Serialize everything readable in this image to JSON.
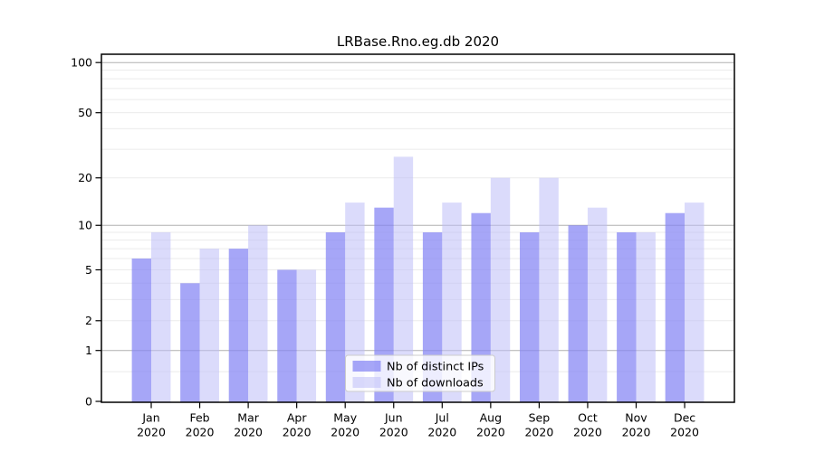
{
  "chart_data": {
    "type": "bar",
    "title": "LRBase.Rno.eg.db 2020",
    "categories": [
      "Jan",
      "Feb",
      "Mar",
      "Apr",
      "May",
      "Jun",
      "Jul",
      "Aug",
      "Sep",
      "Oct",
      "Nov",
      "Dec"
    ],
    "x_sublabel": "2020",
    "series": [
      {
        "name": "Nb of distinct IPs",
        "color": "rgba(132,132,244,0.72)",
        "values": [
          6,
          4,
          7,
          5,
          9,
          13,
          9,
          12,
          9,
          10,
          9,
          12
        ]
      },
      {
        "name": "Nb of downloads",
        "color": "rgba(190,190,248,0.55)",
        "values": [
          9,
          7,
          10,
          5,
          14,
          27,
          14,
          20,
          20,
          13,
          9,
          14
        ]
      }
    ],
    "yscale": "log1p",
    "ylim": [
      0,
      112
    ],
    "yticks": [
      100,
      50,
      20,
      10,
      5,
      2,
      1,
      0
    ],
    "major_gridlines": [
      1,
      10,
      100
    ],
    "minor_gridlines": [
      0.5,
      2,
      3,
      4,
      5,
      6,
      7,
      8,
      9,
      20,
      30,
      40,
      50,
      60,
      70,
      80,
      90
    ],
    "grid": "horizontal",
    "legend_position": "inside-bottom-center",
    "colors": {
      "major_grid": "#b0b0b0",
      "minor_grid": "#ebebeb",
      "axis": "#000000",
      "legend_border": "#cccccc",
      "legend_background": "rgba(255,255,255,0.8)"
    }
  }
}
